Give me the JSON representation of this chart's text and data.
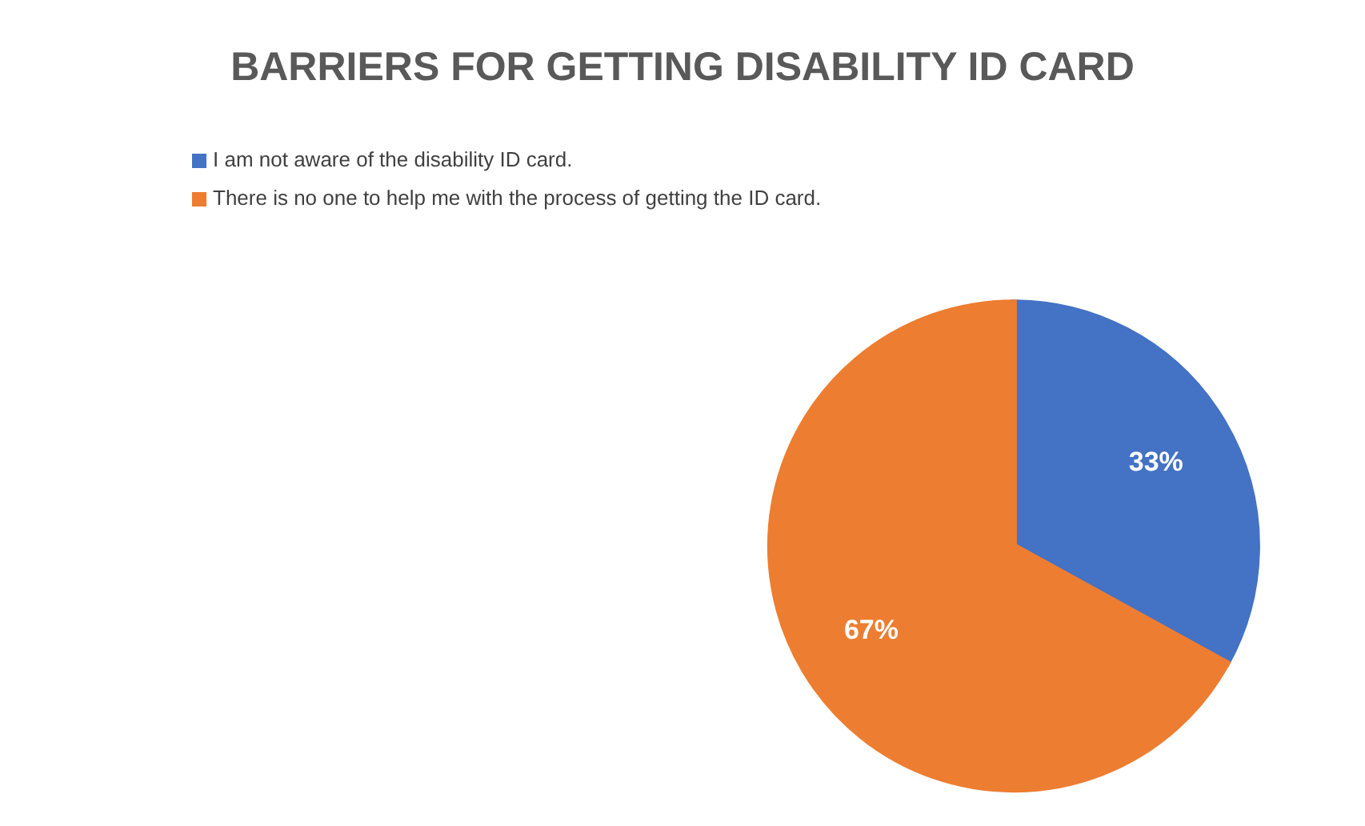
{
  "chart_data": {
    "type": "pie",
    "title": "BARRIERS FOR GETTING DISABILITY ID CARD",
    "categories": [
      "I am not aware of the disability ID card.",
      "There is no one to help me with the process of getting the ID card."
    ],
    "values": [
      33,
      67
    ],
    "colors": [
      "#4472c4",
      "#ed7d31"
    ],
    "value_labels": [
      "33%",
      "67%"
    ],
    "legend": "top left"
  }
}
